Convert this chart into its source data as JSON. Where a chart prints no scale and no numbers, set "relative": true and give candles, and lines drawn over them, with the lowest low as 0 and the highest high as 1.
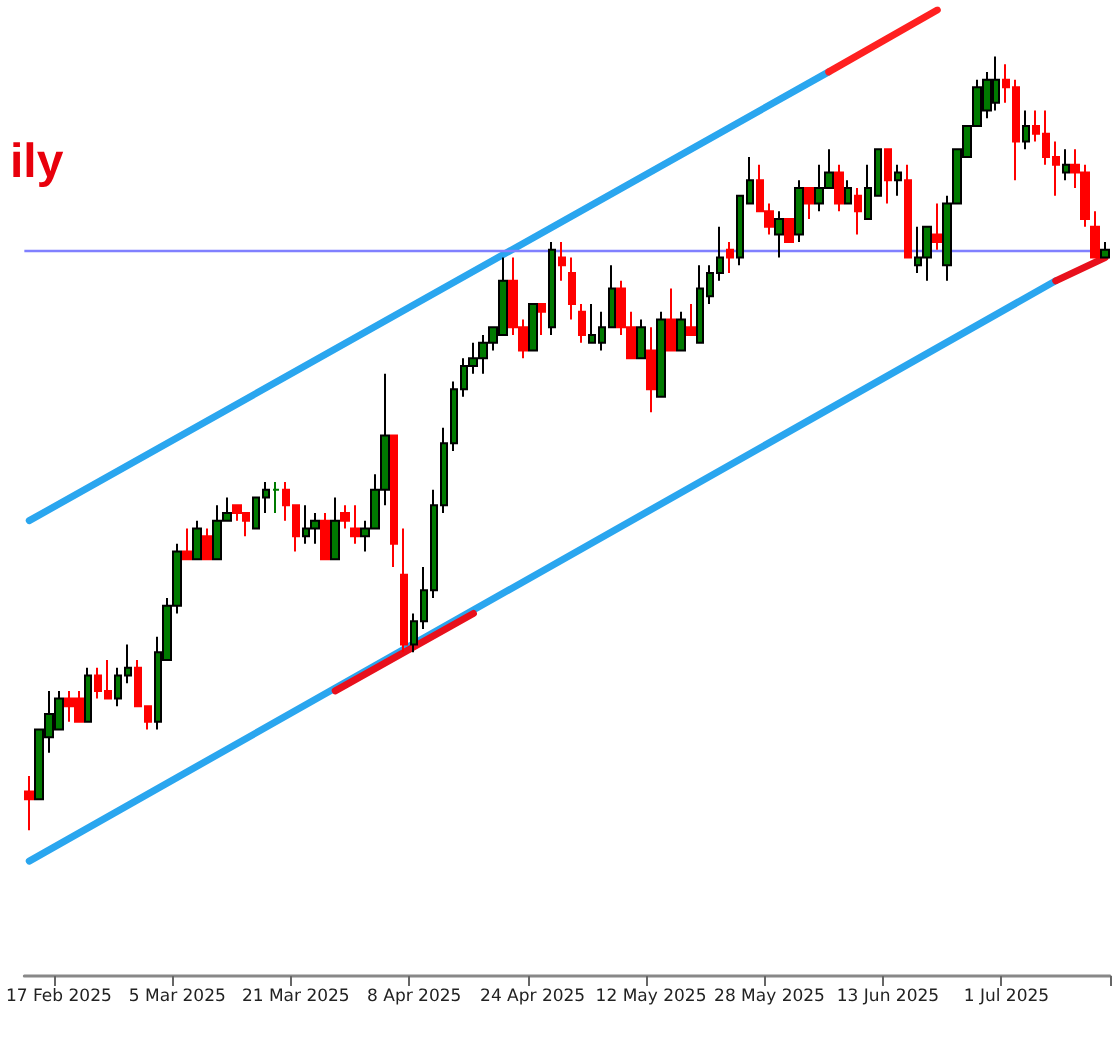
{
  "chart_data": {
    "type": "candlestick",
    "title": "ily",
    "relative": true,
    "categories": [
      null,
      null,
      null,
      "17 Feb 2025",
      null,
      null,
      null,
      null,
      null,
      null,
      null,
      null,
      null,
      null,
      null,
      "5 Mar 2025",
      null,
      null,
      null,
      null,
      null,
      null,
      null,
      null,
      null,
      null,
      null,
      "21 Mar 2025",
      null,
      null,
      null,
      null,
      null,
      null,
      null,
      null,
      null,
      null,
      null,
      "8 Apr 2025",
      null,
      null,
      null,
      null,
      null,
      null,
      null,
      null,
      null,
      null,
      null,
      "24 Apr 2025",
      null,
      null,
      null,
      null,
      null,
      null,
      null,
      null,
      null,
      null,
      null,
      "12 May 2025",
      null,
      null,
      null,
      null,
      null,
      null,
      null,
      null,
      null,
      null,
      null,
      "28 May 2025",
      null,
      null,
      null,
      null,
      null,
      null,
      null,
      null,
      null,
      null,
      null,
      "13 Jun 2025",
      null,
      null,
      null,
      null,
      null,
      null,
      null,
      null,
      null,
      null,
      null,
      "1 Jul 2025",
      null,
      null,
      null,
      null,
      null,
      null,
      null,
      null,
      null,
      null
    ],
    "ref_lines": [
      {
        "axis": "y",
        "value": 0.75,
        "color": "#8080ff"
      }
    ],
    "series": [
      {
        "type": "line",
        "color": "#2aa6ef",
        "values": [
          0.4,
          null,
          null,
          null,
          null,
          null,
          null,
          null,
          null,
          null,
          null,
          null,
          null,
          null,
          null,
          null,
          null,
          null,
          null,
          null,
          null,
          null,
          null,
          null,
          null,
          null,
          null,
          null,
          null,
          null,
          null,
          null,
          null,
          null,
          null,
          null,
          null,
          null,
          null,
          null,
          null,
          null,
          null,
          null,
          null,
          null,
          null,
          null,
          null,
          null,
          null,
          null,
          null,
          null,
          null,
          null,
          null,
          null,
          null,
          null,
          null,
          null,
          null,
          null,
          null,
          null,
          null,
          null,
          null,
          null,
          null,
          null,
          null,
          null,
          null,
          null,
          null,
          null,
          null,
          null,
          null,
          0.98,
          null,
          null,
          null,
          null,
          null,
          null,
          null,
          null,
          null,
          null,
          null,
          null,
          null,
          null,
          null,
          null,
          null,
          null,
          null,
          null,
          null,
          null,
          null,
          null,
          null,
          null,
          null,
          null
        ]
      },
      {
        "type": "line",
        "color": "#ff2020",
        "values": [
          null,
          null,
          null,
          null,
          null,
          null,
          null,
          null,
          null,
          null,
          null,
          null,
          null,
          null,
          null,
          null,
          null,
          null,
          null,
          null,
          null,
          null,
          null,
          null,
          null,
          null,
          null,
          null,
          null,
          null,
          null,
          null,
          null,
          null,
          null,
          null,
          null,
          null,
          null,
          null,
          null,
          null,
          null,
          null,
          null,
          null,
          null,
          null,
          null,
          null,
          null,
          null,
          null,
          null,
          null,
          null,
          null,
          null,
          null,
          null,
          null,
          null,
          null,
          null,
          null,
          null,
          null,
          null,
          null,
          null,
          null,
          null,
          null,
          null,
          null,
          null,
          null,
          null,
          null,
          null,
          null,
          0.98,
          null,
          null,
          null,
          null,
          null,
          null,
          null,
          null,
          null,
          null,
          1.06,
          null,
          null,
          null,
          null,
          null,
          null,
          null,
          null,
          null,
          null,
          null,
          null,
          null,
          null,
          null,
          null,
          null
        ]
      },
      {
        "type": "line",
        "color": "#2aa6ef",
        "values": [
          -0.04,
          null,
          null,
          null,
          null,
          null,
          null,
          null,
          null,
          null,
          null,
          null,
          null,
          null,
          null,
          null,
          null,
          null,
          null,
          null,
          null,
          null,
          null,
          null,
          null,
          null,
          null,
          null,
          null,
          null,
          null,
          null,
          null,
          null,
          null,
          null,
          null,
          null,
          null,
          null,
          null,
          null,
          null,
          null,
          null,
          null,
          null,
          null,
          null,
          null,
          null,
          null,
          null,
          null,
          null,
          null,
          null,
          null,
          null,
          null,
          null,
          null,
          null,
          null,
          null,
          null,
          null,
          null,
          null,
          null,
          null,
          null,
          null,
          null,
          null,
          null,
          null,
          null,
          null,
          null,
          null,
          null,
          null,
          null,
          null,
          null,
          null,
          null,
          null,
          null,
          null,
          null,
          null,
          null,
          null,
          null,
          null,
          null,
          null,
          null,
          null,
          null,
          null,
          null,
          0.71,
          null,
          null,
          null,
          null,
          null
        ]
      },
      {
        "type": "line",
        "color": "#e8101c",
        "values": [
          null,
          null,
          null,
          null,
          null,
          null,
          null,
          null,
          null,
          null,
          null,
          null,
          null,
          null,
          null,
          null,
          null,
          null,
          null,
          null,
          null,
          null,
          null,
          null,
          null,
          null,
          null,
          null,
          null,
          null,
          null,
          0.18,
          null,
          null,
          null,
          null,
          null,
          null,
          null,
          null,
          null,
          null,
          null,
          null,
          null,
          0.28,
          null,
          null,
          null,
          null,
          null,
          null,
          null,
          null,
          null,
          null,
          null,
          null,
          null,
          null,
          null,
          null,
          null,
          null,
          null,
          null,
          null,
          null,
          null,
          null,
          null,
          null,
          null,
          null,
          null,
          null,
          null,
          null,
          null,
          null,
          null,
          null,
          null,
          null,
          null,
          null,
          null,
          null,
          null,
          null,
          null,
          null,
          null,
          null,
          null,
          null,
          null,
          null,
          null,
          null,
          null,
          null,
          null,
          null,
          null,
          null,
          null,
          null,
          null,
          null
        ]
      },
      {
        "type": "line",
        "color": "#e8101c",
        "values": [
          null,
          null,
          null,
          null,
          null,
          null,
          null,
          null,
          null,
          null,
          null,
          null,
          null,
          null,
          null,
          null,
          null,
          null,
          null,
          null,
          null,
          null,
          null,
          null,
          null,
          null,
          null,
          null,
          null,
          null,
          null,
          null,
          null,
          null,
          null,
          null,
          null,
          null,
          null,
          null,
          null,
          null,
          null,
          null,
          null,
          null,
          null,
          null,
          null,
          null,
          null,
          null,
          null,
          null,
          null,
          null,
          null,
          null,
          null,
          null,
          null,
          null,
          null,
          null,
          null,
          null,
          null,
          null,
          null,
          null,
          null,
          null,
          null,
          null,
          null,
          null,
          null,
          null,
          null,
          null,
          null,
          null,
          null,
          null,
          null,
          null,
          null,
          null,
          null,
          null,
          null,
          null,
          null,
          null,
          null,
          null,
          null,
          null,
          null,
          null,
          null,
          null,
          null,
          null,
          0.71,
          null,
          null,
          null,
          null,
          0.74
        ]
      },
      {
        "type": "candlestick",
        "colors": [
          "#ff0000",
          "#007a00",
          "#007a00",
          "#007a00",
          "#ff0000",
          "#ff0000",
          "#007a00",
          "#ff0000",
          "#ff0000",
          "#007a00",
          "#007a00",
          "#ff0000",
          "#ff0000",
          "#007a00",
          "#007a00",
          "#007a00",
          "#ff0000",
          "#007a00",
          "#ff0000",
          "#007a00",
          "#007a00",
          "#ff0000",
          "#ff0000",
          "#007a00",
          "#007a00",
          "#007a00",
          "#ff0000",
          "#ff0000",
          "#007a00",
          "#007a00",
          "#ff0000",
          "#007a00",
          "#ff0000",
          "#ff0000",
          "#007a00",
          "#007a00",
          "#007a00",
          "#ff0000",
          "#ff0000",
          "#007a00",
          "#007a00",
          "#007a00",
          "#007a00",
          "#007a00",
          "#007a00",
          "#007a00",
          "#007a00",
          "#007a00",
          "#007a00",
          "#ff0000",
          "#ff0000",
          "#007a00",
          "#ff0000",
          "#007a00",
          "#ff0000",
          "#ff0000",
          "#ff0000",
          "#007a00",
          "#007a00",
          "#007a00",
          "#ff0000",
          "#ff0000",
          "#007a00",
          "#ff0000",
          "#007a00",
          "#ff0000",
          "#007a00",
          "#ff0000",
          "#007a00",
          "#007a00",
          "#007a00",
          "#ff0000",
          "#007a00",
          "#007a00",
          "#ff0000",
          "#ff0000",
          "#007a00",
          "#ff0000",
          "#007a00",
          "#ff0000",
          "#007a00",
          "#007a00",
          "#ff0000",
          "#007a00",
          "#ff0000",
          "#007a00",
          "#007a00",
          "#ff0000",
          "#007a00",
          "#ff0000",
          "#007a00",
          "#007a00",
          "#ff0000",
          "#007a00",
          "#007a00",
          "#007a00",
          "#007a00",
          "#007a00",
          "#007a00",
          "#ff0000",
          "#ff0000",
          "#007a00",
          "#ff0000",
          "#ff0000",
          "#ff0000",
          "#007a00",
          "#ff0000",
          "#ff0000",
          "#ff0000",
          "#007a00"
        ],
        "ohlc": [
          [
            0.05,
            0.07,
            0,
            0.04
          ],
          [
            0.04,
            0.13,
            0.04,
            0.13
          ],
          [
            0.12,
            0.18,
            0.1,
            0.15
          ],
          [
            0.13,
            0.18,
            0.13,
            0.17
          ],
          [
            0.17,
            0.18,
            0.14,
            0.16
          ],
          [
            0.17,
            0.18,
            0.14,
            0.14
          ],
          [
            0.14,
            0.21,
            0.14,
            0.2
          ],
          [
            0.2,
            0.21,
            0.17,
            0.18
          ],
          [
            0.18,
            0.22,
            0.17,
            0.17
          ],
          [
            0.17,
            0.21,
            0.16,
            0.2
          ],
          [
            0.2,
            0.24,
            0.19,
            0.21
          ],
          [
            0.21,
            0.22,
            0.16,
            0.16
          ],
          [
            0.16,
            0.16,
            0.13,
            0.14
          ],
          [
            0.14,
            0.25,
            0.13,
            0.23
          ],
          [
            0.22,
            0.3,
            0.22,
            0.29
          ],
          [
            0.29,
            0.37,
            0.28,
            0.36
          ],
          [
            0.36,
            0.39,
            0.35,
            0.35
          ],
          [
            0.35,
            0.4,
            0.35,
            0.39
          ],
          [
            0.38,
            0.39,
            0.35,
            0.35
          ],
          [
            0.35,
            0.42,
            0.35,
            0.4
          ],
          [
            0.4,
            0.43,
            0.4,
            0.41
          ],
          [
            0.42,
            0.42,
            0.4,
            0.41
          ],
          [
            0.41,
            0.41,
            0.38,
            0.4
          ],
          [
            0.39,
            0.43,
            0.39,
            0.43
          ],
          [
            0.43,
            0.45,
            0.41,
            0.44
          ],
          [
            0.44,
            0.45,
            0.41,
            0.44
          ],
          [
            0.44,
            0.45,
            0.4,
            0.42
          ],
          [
            0.42,
            0.42,
            0.36,
            0.38
          ],
          [
            0.38,
            0.42,
            0.37,
            0.39
          ],
          [
            0.39,
            0.41,
            0.37,
            0.4
          ],
          [
            0.4,
            0.41,
            0.35,
            0.35
          ],
          [
            0.35,
            0.43,
            0.35,
            0.4
          ],
          [
            0.41,
            0.42,
            0.39,
            0.4
          ],
          [
            0.39,
            0.42,
            0.37,
            0.38
          ],
          [
            0.38,
            0.4,
            0.36,
            0.39
          ],
          [
            0.39,
            0.46,
            0.39,
            0.44
          ],
          [
            0.44,
            0.59,
            0.42,
            0.51
          ],
          [
            0.51,
            0.51,
            0.34,
            0.37
          ],
          [
            0.33,
            0.39,
            0.23,
            0.24
          ],
          [
            0.24,
            0.28,
            0.23,
            0.27
          ],
          [
            0.27,
            0.34,
            0.26,
            0.31
          ],
          [
            0.31,
            0.44,
            0.3,
            0.42
          ],
          [
            0.42,
            0.52,
            0.41,
            0.5
          ],
          [
            0.5,
            0.58,
            0.49,
            0.57
          ],
          [
            0.57,
            0.61,
            0.56,
            0.6
          ],
          [
            0.6,
            0.63,
            0.59,
            0.61
          ],
          [
            0.61,
            0.64,
            0.59,
            0.63
          ],
          [
            0.63,
            0.65,
            0.62,
            0.65
          ],
          [
            0.64,
            0.74,
            0.64,
            0.71
          ],
          [
            0.71,
            0.74,
            0.64,
            0.65
          ],
          [
            0.65,
            0.66,
            0.61,
            0.62
          ],
          [
            0.62,
            0.68,
            0.62,
            0.68
          ],
          [
            0.68,
            0.68,
            0.64,
            0.67
          ],
          [
            0.65,
            0.76,
            0.64,
            0.75
          ],
          [
            0.74,
            0.76,
            0.71,
            0.73
          ],
          [
            0.72,
            0.74,
            0.66,
            0.68
          ],
          [
            0.67,
            0.68,
            0.63,
            0.64
          ],
          [
            0.63,
            0.68,
            0.63,
            0.64
          ],
          [
            0.63,
            0.67,
            0.62,
            0.65
          ],
          [
            0.65,
            0.73,
            0.65,
            0.7
          ],
          [
            0.7,
            0.71,
            0.64,
            0.65
          ],
          [
            0.65,
            0.67,
            0.61,
            0.61
          ],
          [
            0.61,
            0.66,
            0.61,
            0.65
          ],
          [
            0.62,
            0.65,
            0.54,
            0.57
          ],
          [
            0.56,
            0.67,
            0.56,
            0.66
          ],
          [
            0.66,
            0.7,
            0.62,
            0.62
          ],
          [
            0.62,
            0.67,
            0.62,
            0.66
          ],
          [
            0.65,
            0.68,
            0.64,
            0.64
          ],
          [
            0.63,
            0.73,
            0.63,
            0.7
          ],
          [
            0.69,
            0.73,
            0.68,
            0.72
          ],
          [
            0.72,
            0.78,
            0.71,
            0.74
          ],
          [
            0.75,
            0.76,
            0.72,
            0.74
          ],
          [
            0.74,
            0.82,
            0.73,
            0.82
          ],
          [
            0.81,
            0.87,
            0.81,
            0.84
          ],
          [
            0.84,
            0.86,
            0.8,
            0.8
          ],
          [
            0.8,
            0.81,
            0.77,
            0.78
          ],
          [
            0.77,
            0.8,
            0.74,
            0.79
          ],
          [
            0.79,
            0.79,
            0.76,
            0.76
          ],
          [
            0.77,
            0.84,
            0.76,
            0.83
          ],
          [
            0.83,
            0.83,
            0.79,
            0.81
          ],
          [
            0.81,
            0.86,
            0.8,
            0.83
          ],
          [
            0.83,
            0.88,
            0.83,
            0.85
          ],
          [
            0.85,
            0.86,
            0.8,
            0.81
          ],
          [
            0.81,
            0.84,
            0.81,
            0.83
          ],
          [
            0.82,
            0.83,
            0.77,
            0.8
          ],
          [
            0.79,
            0.86,
            0.79,
            0.83
          ],
          [
            0.82,
            0.88,
            0.82,
            0.88
          ],
          [
            0.88,
            0.88,
            0.81,
            0.84
          ],
          [
            0.84,
            0.86,
            0.82,
            0.85
          ],
          [
            0.84,
            0.86,
            0.74,
            0.74
          ],
          [
            0.73,
            0.78,
            0.72,
            0.74
          ],
          [
            0.74,
            0.78,
            0.71,
            0.78
          ],
          [
            0.77,
            0.81,
            0.75,
            0.76
          ],
          [
            0.73,
            0.82,
            0.71,
            0.81
          ],
          [
            0.81,
            0.88,
            0.81,
            0.88
          ],
          [
            0.87,
            0.91,
            0.87,
            0.91
          ],
          [
            0.91,
            0.97,
            0.91,
            0.96
          ],
          [
            0.93,
            0.98,
            0.92,
            0.97
          ],
          [
            0.94,
            1,
            0.93,
            0.97
          ],
          [
            0.97,
            0.99,
            0.94,
            0.96
          ],
          [
            0.96,
            0.97,
            0.84,
            0.89
          ],
          [
            0.89,
            0.93,
            0.88,
            0.91
          ],
          [
            0.91,
            0.93,
            0.89,
            0.9
          ],
          [
            0.9,
            0.93,
            0.86,
            0.87
          ],
          [
            0.87,
            0.89,
            0.82,
            0.86
          ],
          [
            0.85,
            0.88,
            0.84,
            0.86
          ],
          [
            0.86,
            0.88,
            0.83,
            0.85
          ],
          [
            0.85,
            0.86,
            0.78,
            0.79
          ],
          [
            0.78,
            0.8,
            0.74,
            0.74
          ],
          [
            0.74,
            0.76,
            0.74,
            0.75
          ]
        ]
      }
    ]
  }
}
